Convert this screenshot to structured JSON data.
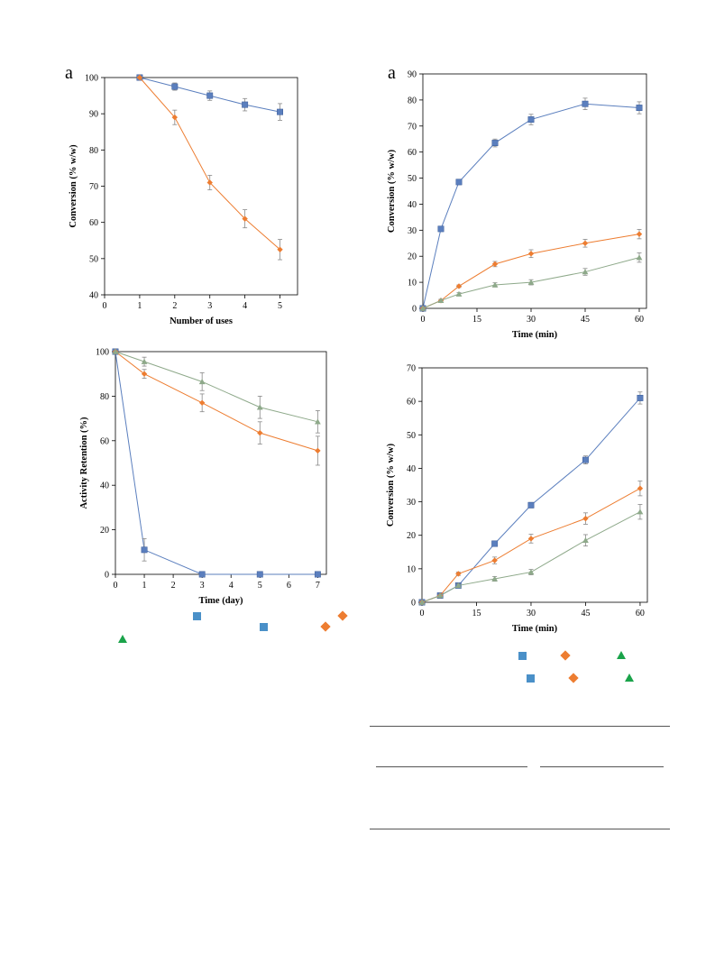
{
  "panel_letters": {
    "top_left": "a",
    "top_right": "a"
  },
  "colors": {
    "blue": "#5b7fbe",
    "orange": "#ed7d31",
    "green": "#8ea98a",
    "legend_blue": "#4a90c8",
    "legend_green": "#1aa34a"
  },
  "chart_data": [
    {
      "id": "reuse",
      "type": "line",
      "xlabel": "Number of uses",
      "ylabel": "Conversion (% w/w)",
      "xlim": [
        0,
        5.5
      ],
      "ylim": [
        40,
        100
      ],
      "xticks": [
        0,
        1,
        2,
        3,
        4,
        5
      ],
      "yticks": [
        40,
        50,
        60,
        70,
        80,
        90,
        100
      ],
      "series": [
        {
          "marker": "square",
          "color": "#5b7fbe",
          "x": [
            1,
            2,
            3,
            4,
            5
          ],
          "y": [
            100,
            97.5,
            95,
            92.5,
            90.5
          ],
          "err": [
            0,
            1,
            1.3,
            1.7,
            2.3
          ]
        },
        {
          "marker": "diamond",
          "color": "#ed7d31",
          "x": [
            1,
            2,
            3,
            4,
            5
          ],
          "y": [
            100,
            89,
            71,
            61,
            52.5
          ],
          "err": [
            0,
            2,
            2,
            2.5,
            2.8
          ]
        }
      ]
    },
    {
      "id": "time_a",
      "type": "line",
      "xlabel": "Time (min)",
      "ylabel": "Conversion (% w/w)",
      "xlim": [
        0,
        62
      ],
      "ylim": [
        0,
        90
      ],
      "xticks": [
        0,
        15,
        30,
        45,
        60
      ],
      "yticks": [
        0,
        10,
        20,
        30,
        40,
        50,
        60,
        70,
        80,
        90
      ],
      "series": [
        {
          "marker": "square",
          "color": "#5b7fbe",
          "x": [
            0,
            5,
            10,
            20,
            30,
            45,
            60
          ],
          "y": [
            0,
            30.5,
            48.5,
            63.5,
            72.5,
            78.5,
            77
          ],
          "err": [
            0,
            0.5,
            1,
            1.5,
            2,
            2.2,
            2.3
          ]
        },
        {
          "marker": "diamond",
          "color": "#ed7d31",
          "x": [
            0,
            5,
            10,
            20,
            30,
            45,
            60
          ],
          "y": [
            0,
            3,
            8.5,
            17,
            21,
            25,
            28.5
          ],
          "err": [
            0,
            0.5,
            0.5,
            1,
            1.5,
            1.5,
            1.8
          ]
        },
        {
          "marker": "triangle",
          "color": "#8ea98a",
          "x": [
            0,
            5,
            10,
            20,
            30,
            45,
            60
          ],
          "y": [
            0,
            3,
            5.5,
            9,
            10,
            14,
            19.5
          ],
          "err": [
            0,
            0.5,
            0.5,
            0.8,
            1,
            1.3,
            1.8
          ]
        }
      ]
    },
    {
      "id": "retention",
      "type": "line",
      "xlabel": "Time (day)",
      "ylabel": "Activity Retention (%)",
      "xlim": [
        0,
        7.3
      ],
      "ylim": [
        0,
        100
      ],
      "xticks": [
        0,
        1,
        2,
        3,
        4,
        5,
        6,
        7
      ],
      "yticks": [
        0,
        20,
        40,
        60,
        80,
        100
      ],
      "series": [
        {
          "marker": "square",
          "color": "#5b7fbe",
          "x": [
            0,
            1,
            3,
            5,
            7
          ],
          "y": [
            100,
            11,
            0,
            0,
            0
          ],
          "err": [
            0,
            5,
            0,
            0,
            0
          ]
        },
        {
          "marker": "diamond",
          "color": "#ed7d31",
          "x": [
            0,
            1,
            3,
            5,
            7
          ],
          "y": [
            100,
            90,
            77,
            63.5,
            55.5
          ],
          "err": [
            0,
            2,
            4,
            5,
            6.5
          ]
        },
        {
          "marker": "triangle",
          "color": "#8ea98a",
          "x": [
            0,
            1,
            3,
            5,
            7
          ],
          "y": [
            100,
            95.5,
            86.5,
            75,
            68.5
          ],
          "err": [
            0,
            2,
            4,
            5,
            5
          ]
        }
      ]
    },
    {
      "id": "time_b",
      "type": "line",
      "xlabel": "Time (min)",
      "ylabel": "Conversion (% w/w)",
      "xlim": [
        0,
        62
      ],
      "ylim": [
        0,
        70
      ],
      "xticks": [
        0,
        15,
        30,
        45,
        60
      ],
      "yticks": [
        0,
        10,
        20,
        30,
        40,
        50,
        60,
        70
      ],
      "series": [
        {
          "marker": "square",
          "color": "#5b7fbe",
          "x": [
            0,
            5,
            10,
            20,
            30,
            45,
            60
          ],
          "y": [
            0,
            2,
            5,
            17.5,
            29,
            42.5,
            61
          ],
          "err": [
            0,
            0.3,
            0.5,
            0.7,
            0.8,
            1.2,
            1.8
          ]
        },
        {
          "marker": "diamond",
          "color": "#ed7d31",
          "x": [
            0,
            5,
            10,
            20,
            30,
            45,
            60
          ],
          "y": [
            0,
            2,
            8.5,
            12.5,
            19,
            25,
            34
          ],
          "err": [
            0,
            0.3,
            0.5,
            1,
            1.3,
            1.7,
            2.2
          ]
        },
        {
          "marker": "triangle",
          "color": "#8ea98a",
          "x": [
            0,
            5,
            10,
            20,
            30,
            45,
            60
          ],
          "y": [
            0,
            2,
            5,
            7,
            9,
            18.5,
            27
          ],
          "err": [
            0,
            0.3,
            0.5,
            0.7,
            0.8,
            1.7,
            2.2
          ]
        }
      ]
    }
  ]
}
